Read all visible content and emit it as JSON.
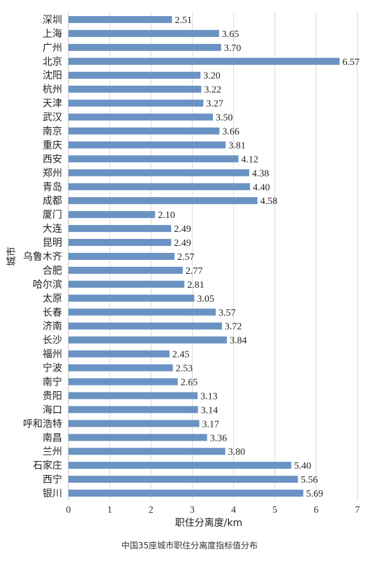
{
  "chart_data": {
    "type": "bar",
    "orientation": "horizontal",
    "title": "中国35座城市职住分离度指标值分布",
    "xlabel": "职住分离度/km",
    "ylabel": "城市",
    "xlim": [
      0,
      7
    ],
    "xticks": [
      "0",
      "1",
      "2",
      "3",
      "4",
      "5",
      "6",
      "7"
    ],
    "grid": "vertical",
    "bar_color": "#6A93C4",
    "categories": [
      "深圳",
      "上海",
      "广州",
      "北京",
      "沈阳",
      "杭州",
      "天津",
      "武汉",
      "南京",
      "重庆",
      "西安",
      "郑州",
      "青岛",
      "成都",
      "厦门",
      "大连",
      "昆明",
      "乌鲁木齐",
      "合肥",
      "哈尔滨",
      "太原",
      "长春",
      "济南",
      "长沙",
      "福州",
      "宁波",
      "南宁",
      "贵阳",
      "海口",
      "呼和浩特",
      "南昌",
      "兰州",
      "石家庄",
      "西宁",
      "银川"
    ],
    "values": [
      2.51,
      3.65,
      3.7,
      6.57,
      3.2,
      3.22,
      3.27,
      3.5,
      3.66,
      3.81,
      4.12,
      4.38,
      4.4,
      4.58,
      2.1,
      2.49,
      2.49,
      2.57,
      2.77,
      2.81,
      3.05,
      3.57,
      3.72,
      3.84,
      2.45,
      2.53,
      2.65,
      3.13,
      3.14,
      3.17,
      3.36,
      3.8,
      5.4,
      5.56,
      5.69
    ],
    "value_labels": [
      "2.51",
      "3.65",
      "3.70",
      "6.57",
      "3.20",
      "3.22",
      "3.27",
      "3.50",
      "3.66",
      "3.81",
      "4.12",
      "4.38",
      "4.40",
      "4.58",
      "2.10",
      "2.49",
      "2.49",
      "2.57",
      "2.77",
      "2.81",
      "3.05",
      "3.57",
      "3.72",
      "3.84",
      "2.45",
      "2.53",
      "2.65",
      "3.13",
      "3.14",
      "3.17",
      "3.36",
      "3.80",
      "5.40",
      "5.56",
      "5.69"
    ]
  }
}
